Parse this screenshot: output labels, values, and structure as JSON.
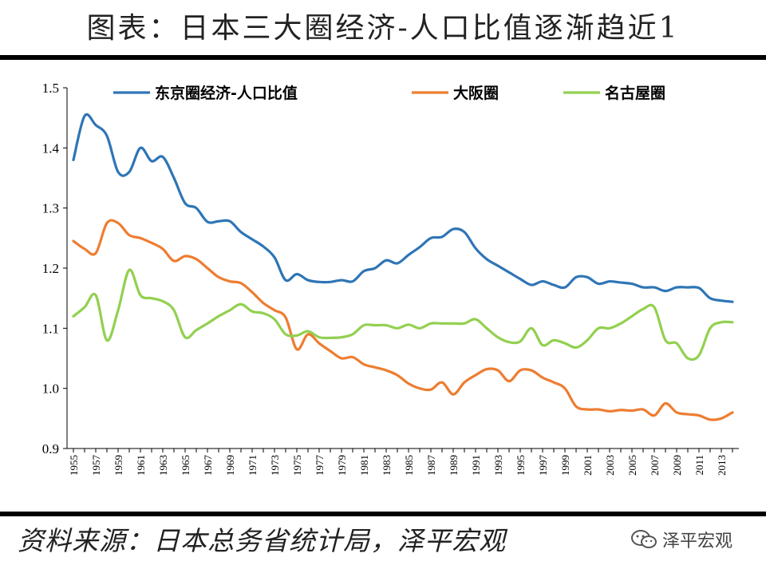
{
  "header": {
    "title": "图表：日本三大圈经济-人口比值逐渐趋近1"
  },
  "footer": {
    "source": "资料来源：日本总务省统计局，泽平宏观",
    "watermark": "泽平宏观"
  },
  "chart_data": {
    "type": "line",
    "ylim": [
      0.9,
      1.5
    ],
    "yticks": [
      0.9,
      1.0,
      1.1,
      1.2,
      1.3,
      1.4,
      1.5
    ],
    "ytick_labels": [
      "0.9",
      "1.0",
      "1.1",
      "1.2",
      "1.3",
      "1.4",
      "1.5"
    ],
    "x": [
      1955,
      1956,
      1957,
      1958,
      1959,
      1960,
      1961,
      1962,
      1963,
      1964,
      1965,
      1966,
      1967,
      1968,
      1969,
      1970,
      1971,
      1972,
      1973,
      1974,
      1975,
      1976,
      1977,
      1978,
      1979,
      1980,
      1981,
      1982,
      1983,
      1984,
      1985,
      1986,
      1987,
      1988,
      1989,
      1990,
      1991,
      1992,
      1993,
      1994,
      1995,
      1996,
      1997,
      1998,
      1999,
      2000,
      2001,
      2002,
      2003,
      2004,
      2005,
      2006,
      2007,
      2008,
      2009,
      2010,
      2011,
      2012,
      2013,
      2014
    ],
    "xticks": [
      "1955",
      "1957",
      "1959",
      "1961",
      "1963",
      "1965",
      "1967",
      "1969",
      "1971",
      "1973",
      "1975",
      "1977",
      "1979",
      "1981",
      "1983",
      "1985",
      "1987",
      "1989",
      "1991",
      "1993",
      "1995",
      "1997",
      "1999",
      "2001",
      "2003",
      "2005",
      "2007",
      "2009",
      "2011",
      "2013"
    ],
    "legend_position": "top",
    "series": [
      {
        "name": "东京圈经济-人口比值",
        "color": "#2e75b6",
        "values": [
          1.38,
          1.453,
          1.438,
          1.42,
          1.36,
          1.36,
          1.4,
          1.378,
          1.385,
          1.35,
          1.308,
          1.3,
          1.277,
          1.278,
          1.278,
          1.26,
          1.248,
          1.236,
          1.218,
          1.18,
          1.19,
          1.18,
          1.177,
          1.177,
          1.18,
          1.178,
          1.195,
          1.2,
          1.213,
          1.208,
          1.222,
          1.235,
          1.25,
          1.252,
          1.265,
          1.26,
          1.233,
          1.215,
          1.204,
          1.193,
          1.182,
          1.172,
          1.178,
          1.172,
          1.168,
          1.185,
          1.185,
          1.174,
          1.178,
          1.176,
          1.174,
          1.168,
          1.168,
          1.162,
          1.168,
          1.168,
          1.167,
          1.15,
          1.146,
          1.144
        ]
      },
      {
        "name": "大阪圈",
        "color": "#ed7d31",
        "values": [
          1.245,
          1.232,
          1.225,
          1.275,
          1.275,
          1.255,
          1.25,
          1.242,
          1.232,
          1.212,
          1.22,
          1.215,
          1.2,
          1.185,
          1.178,
          1.175,
          1.16,
          1.142,
          1.13,
          1.118,
          1.065,
          1.09,
          1.075,
          1.062,
          1.05,
          1.052,
          1.04,
          1.035,
          1.03,
          1.022,
          1.008,
          1.0,
          0.998,
          1.01,
          0.99,
          1.01,
          1.022,
          1.032,
          1.03,
          1.012,
          1.03,
          1.03,
          1.018,
          1.01,
          1.0,
          0.97,
          0.965,
          0.965,
          0.962,
          0.964,
          0.963,
          0.965,
          0.955,
          0.975,
          0.96,
          0.957,
          0.955,
          0.948,
          0.95,
          0.96
        ]
      },
      {
        "name": "名古屋圈",
        "color": "#92d050",
        "values": [
          1.12,
          1.135,
          1.155,
          1.08,
          1.13,
          1.197,
          1.155,
          1.15,
          1.145,
          1.13,
          1.085,
          1.097,
          1.108,
          1.12,
          1.13,
          1.14,
          1.128,
          1.125,
          1.115,
          1.09,
          1.088,
          1.095,
          1.085,
          1.084,
          1.085,
          1.09,
          1.105,
          1.105,
          1.105,
          1.1,
          1.106,
          1.1,
          1.108,
          1.108,
          1.108,
          1.108,
          1.115,
          1.1,
          1.085,
          1.077,
          1.078,
          1.1,
          1.072,
          1.08,
          1.075,
          1.068,
          1.08,
          1.1,
          1.1,
          1.108,
          1.12,
          1.132,
          1.135,
          1.08,
          1.075,
          1.05,
          1.055,
          1.1,
          1.11,
          1.11
        ]
      }
    ]
  }
}
